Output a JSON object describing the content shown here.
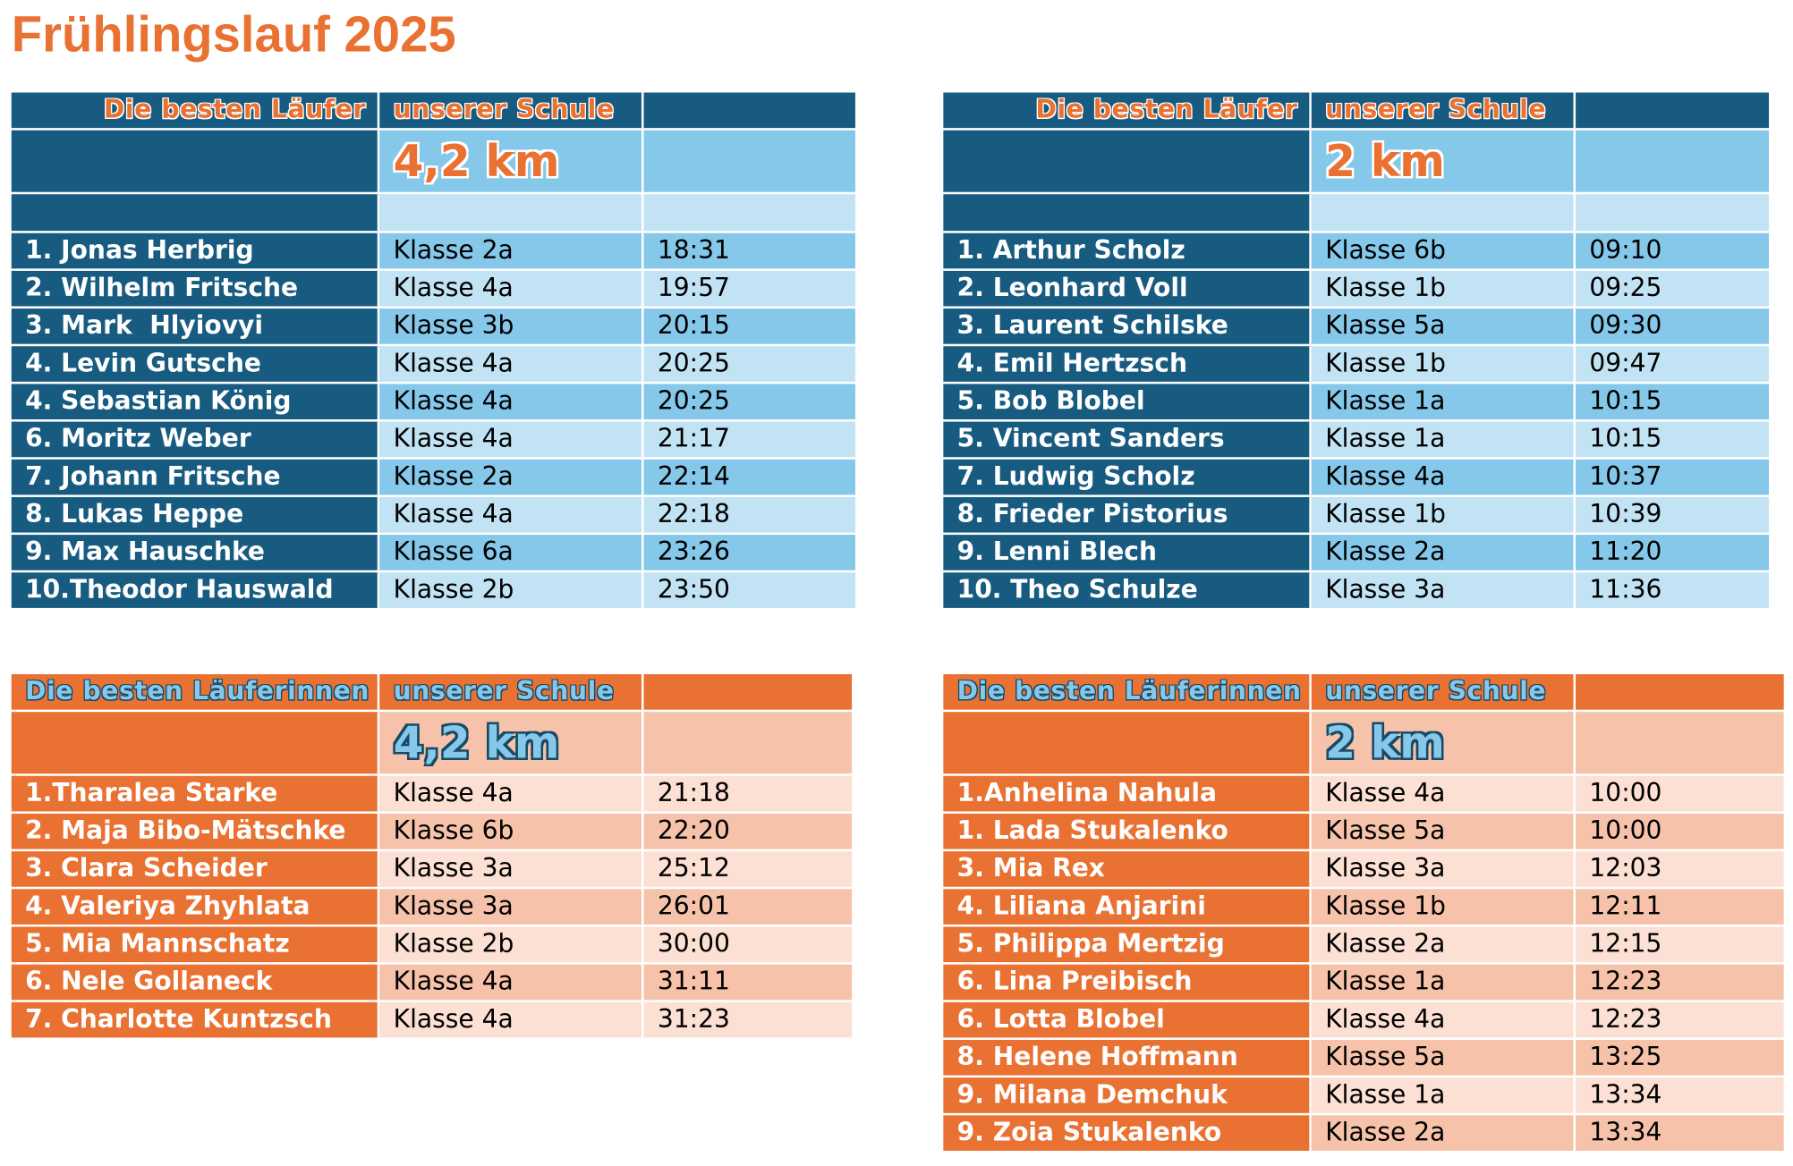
{
  "title": "Frühlingslauf 2025",
  "tables": [
    {
      "header": [
        "Die besten Läufer",
        "unserer Schule"
      ],
      "distance": "4,2 km",
      "rows": [
        [
          "1. Jonas Herbrig",
          "Klasse 2a",
          "18:31"
        ],
        [
          "2. Wilhelm Fritsche",
          "Klasse 4a",
          "19:57"
        ],
        [
          "3. Mark  Hlyiovyi",
          "Klasse 3b",
          "20:15"
        ],
        [
          "4. Levin Gutsche",
          "Klasse 4a",
          "20:25"
        ],
        [
          "4. Sebastian König",
          "Klasse 4a",
          "20:25"
        ],
        [
          "6. Moritz Weber",
          "Klasse 4a",
          "21:17"
        ],
        [
          "7. Johann Fritsche",
          "Klasse 2a",
          "22:14"
        ],
        [
          "8. Lukas Heppe",
          "Klasse 4a",
          "22:18"
        ],
        [
          "9. Max Hauschke",
          "Klasse 6a",
          "23:26"
        ],
        [
          "10.Theodor Hauswald",
          "Klasse 2b",
          "23:50"
        ]
      ]
    },
    {
      "header": [
        "Die besten Läufer",
        "unserer Schule"
      ],
      "distance": "2 km",
      "rows": [
        [
          "1. Arthur Scholz",
          "Klasse 6b",
          "09:10"
        ],
        [
          "2. Leonhard Voll",
          "Klasse 1b",
          "09:25"
        ],
        [
          "3. Laurent Schilske",
          "Klasse 5a",
          "09:30"
        ],
        [
          "4. Emil Hertzsch",
          "Klasse 1b",
          "09:47"
        ],
        [
          "5. Bob Blobel",
          "Klasse 1a",
          "10:15"
        ],
        [
          "5. Vincent Sanders",
          "Klasse 1a",
          "10:15"
        ],
        [
          "7. Ludwig Scholz",
          "Klasse 4a",
          "10:37"
        ],
        [
          "8. Frieder Pistorius",
          "Klasse 1b",
          "10:39"
        ],
        [
          "9. Lenni Blech",
          "Klasse 2a",
          "11:20"
        ],
        [
          "10. Theo Schulze",
          "Klasse 3a",
          "11:36"
        ]
      ]
    },
    {
      "header": [
        "Die besten Läuferinnen",
        "unserer Schule"
      ],
      "distance": "4,2 km",
      "rows": [
        [
          "1.Tharalea Starke",
          "Klasse 4a",
          "21:18"
        ],
        [
          "2. Maja Bibo-Mätschke",
          "Klasse 6b",
          "22:20"
        ],
        [
          "3. Clara Scheider",
          "Klasse 3a",
          "25:12"
        ],
        [
          "4. Valeriya Zhyhlata",
          "Klasse 3a",
          "26:01"
        ],
        [
          "5. Mia Mannschatz",
          "Klasse 2b",
          "30:00"
        ],
        [
          "6. Nele Gollaneck",
          "Klasse 4a",
          "31:11"
        ],
        [
          "7. Charlotte Kuntzsch",
          "Klasse 4a",
          "31:23"
        ]
      ]
    },
    {
      "header": [
        "Die besten Läuferinnen",
        "unserer Schule"
      ],
      "distance": "2 km",
      "rows": [
        [
          "1.Anhelina Nahula",
          "Klasse 4a",
          "10:00"
        ],
        [
          "1. Lada Stukalenko",
          "Klasse 5a",
          "10:00"
        ],
        [
          "3. Mia Rex",
          "Klasse 3a",
          "12:03"
        ],
        [
          "4. Liliana Anjarini",
          "Klasse 1b",
          "12:11"
        ],
        [
          "5. Philippa Mertzig",
          "Klasse 2a",
          "12:15"
        ],
        [
          "6. Lina Preibisch",
          "Klasse 1a",
          "12:23"
        ],
        [
          "6. Lotta Blobel",
          "Klasse 4a",
          "12:23"
        ],
        [
          "8. Helene Hoffmann",
          "Klasse 5a",
          "13:25"
        ],
        [
          "9. Milana Demchuk",
          "Klasse 1a",
          "13:34"
        ],
        [
          "9. Zoia Stukalenko",
          "Klasse 2a",
          "13:34"
        ]
      ]
    }
  ]
}
